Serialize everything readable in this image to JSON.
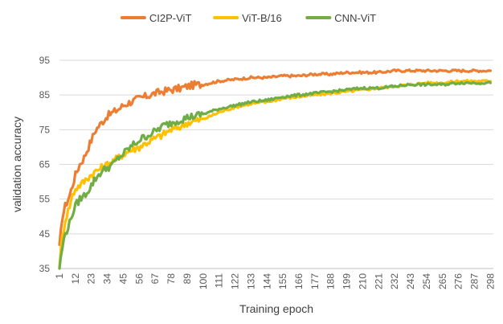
{
  "chart_data": {
    "type": "line",
    "title": "",
    "xlabel": "Training epoch",
    "ylabel": "validation accuracy",
    "x_tick_labels": [
      "1",
      "12",
      "23",
      "34",
      "45",
      "56",
      "67",
      "78",
      "89",
      "100",
      "111",
      "122",
      "133",
      "144",
      "155",
      "166",
      "177",
      "188",
      "199",
      "210",
      "221",
      "232",
      "243",
      "254",
      "265",
      "276",
      "287",
      "298"
    ],
    "y_ticks": [
      35,
      45,
      55,
      65,
      75,
      85,
      95
    ],
    "xlim": [
      1,
      300
    ],
    "ylim": [
      35,
      95
    ],
    "grid": "horizontal",
    "legend_position": "top",
    "series": [
      {
        "name": "CI2P-ViT",
        "color": "#ED7D31",
        "x": [
          1,
          3,
          5,
          8,
          10,
          12,
          15,
          18,
          20,
          23,
          26,
          30,
          34,
          38,
          42,
          45,
          50,
          56,
          60,
          67,
          72,
          78,
          85,
          89,
          95,
          100,
          111,
          122,
          133,
          144,
          155,
          166,
          177,
          188,
          199,
          210,
          221,
          232,
          243,
          254,
          265,
          276,
          287,
          298
        ],
        "values": [
          41,
          50,
          53,
          56,
          59,
          62,
          65,
          67,
          69,
          72,
          75,
          77,
          79,
          80,
          81,
          82,
          83,
          84,
          84.5,
          85.5,
          86,
          86.5,
          87,
          87.5,
          88,
          88,
          89,
          89.5,
          90,
          90,
          90.5,
          90.5,
          91,
          91,
          91.5,
          91.5,
          91.5,
          92,
          92,
          92,
          92,
          92,
          92,
          92
        ]
      },
      {
        "name": "ViT-B/16",
        "color": "#FFC000",
        "x": [
          1,
          3,
          5,
          8,
          10,
          12,
          15,
          18,
          20,
          23,
          26,
          30,
          34,
          38,
          42,
          45,
          50,
          56,
          60,
          67,
          72,
          78,
          85,
          89,
          95,
          100,
          111,
          122,
          133,
          144,
          155,
          166,
          177,
          188,
          199,
          210,
          221,
          232,
          243,
          254,
          265,
          276,
          287,
          298
        ],
        "values": [
          36,
          44,
          49,
          53,
          56,
          58,
          59,
          60,
          61,
          62,
          63,
          64,
          65,
          66,
          67,
          68,
          69,
          70,
          71,
          72.5,
          73.5,
          75,
          76,
          77,
          77.5,
          78,
          80,
          81.5,
          82.5,
          83,
          84,
          84.5,
          85,
          85.5,
          86,
          86.5,
          87,
          87.5,
          88,
          88.5,
          88.5,
          89,
          89,
          89
        ]
      },
      {
        "name": "CNN-ViT",
        "color": "#70AD47",
        "x": [
          1,
          3,
          5,
          8,
          10,
          12,
          15,
          18,
          20,
          23,
          26,
          30,
          34,
          38,
          42,
          45,
          50,
          56,
          60,
          67,
          72,
          78,
          85,
          89,
          95,
          100,
          111,
          122,
          133,
          144,
          155,
          166,
          177,
          188,
          199,
          210,
          221,
          232,
          243,
          254,
          265,
          276,
          287,
          298
        ],
        "values": [
          35,
          41,
          45,
          48,
          51,
          53,
          55,
          56,
          57,
          59,
          61,
          63,
          64,
          65,
          67,
          68,
          70,
          72,
          73,
          74.5,
          76,
          77,
          78,
          78.5,
          79,
          79.5,
          81,
          82,
          83,
          83.5,
          84.5,
          85,
          85.5,
          86,
          86.5,
          87,
          87,
          87.5,
          88,
          88,
          88,
          88.5,
          88.5,
          88.5
        ]
      }
    ]
  }
}
